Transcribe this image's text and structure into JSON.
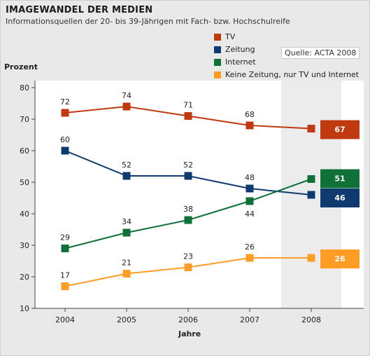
{
  "header": {
    "title": "IMAGEWANDEL DER MEDIEN",
    "subtitle": "Informationsquellen der 20- bis 39-Jährigen mit Fach- bzw. Hochschulreife"
  },
  "source_label": "Quelle: ACTA 2008",
  "chart_data": {
    "type": "line",
    "title": "IMAGEWANDEL DER MEDIEN",
    "subtitle": "Informationsquellen der 20- bis 39-Jährigen mit Fach- bzw. Hochschulreife",
    "xlabel": "Jahre",
    "ylabel": "Prozent",
    "x": [
      "2004",
      "2005",
      "2006",
      "2007",
      "2008"
    ],
    "ylim": [
      10,
      80
    ],
    "yticks": [
      10,
      20,
      30,
      40,
      50,
      60,
      70,
      80
    ],
    "grid": false,
    "highlight_category": "2008",
    "legend_position": "top-right",
    "series": [
      {
        "name": "TV",
        "color": "#c0390f",
        "values": [
          72,
          74,
          71,
          68,
          67
        ],
        "labels": [
          "72",
          "74",
          "71",
          "68",
          "67"
        ]
      },
      {
        "name": "Zeitung",
        "color": "#0e3a70",
        "values": [
          60,
          52,
          52,
          48,
          46
        ],
        "labels": [
          "60",
          "52",
          "52",
          "48",
          "46"
        ]
      },
      {
        "name": "Internet",
        "color": "#0f7138",
        "values": [
          29,
          34,
          38,
          44,
          51
        ],
        "labels": [
          "29",
          "34",
          "38",
          "44",
          "51"
        ]
      },
      {
        "name": "Keine Zeitung, nur TV und Internet",
        "color": "#ff9c26",
        "values": [
          17,
          21,
          23,
          26,
          26
        ],
        "labels": [
          "17",
          "21",
          "23",
          "26",
          "26"
        ]
      }
    ]
  }
}
